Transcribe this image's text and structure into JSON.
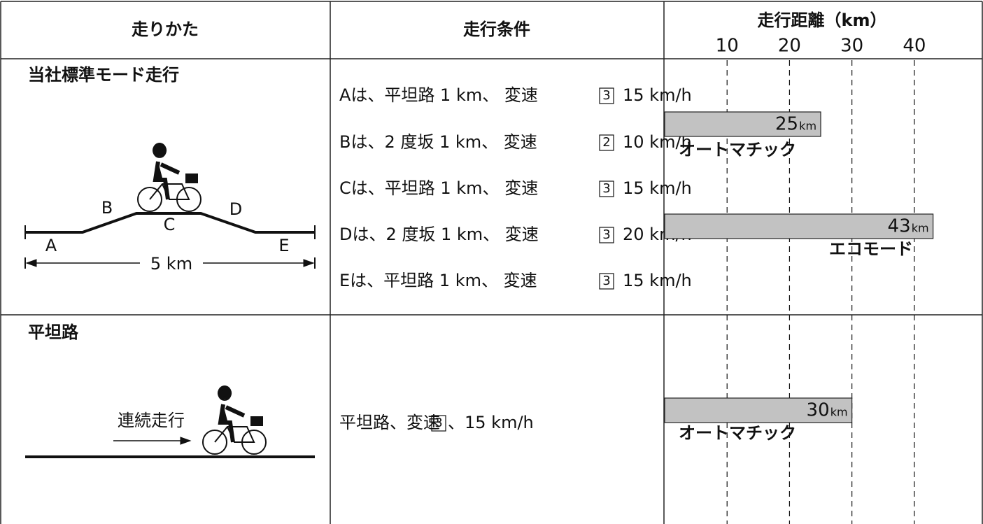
{
  "header": {
    "method": "走りかた",
    "conditions": "走行条件",
    "distance": "走行距離（km）"
  },
  "axis": {
    "xlim": [
      0,
      51
    ],
    "xticks": [
      10,
      20,
      30,
      40
    ]
  },
  "rows": [
    {
      "title": "当社標準モード走行",
      "diagram": {
        "points": [
          "A",
          "B",
          "C",
          "D",
          "E"
        ],
        "length": "5 km"
      },
      "conditions": [
        {
          "text": "Aは、平坦路 1 km、 変速",
          "gear": "3",
          "speed": "15 km/h"
        },
        {
          "text": "Bは、2 度坂 1 km、 変速",
          "gear": "2",
          "speed": "10 km/h"
        },
        {
          "text": "Cは、平坦路 1 km、 変速",
          "gear": "3",
          "speed": "15 km/h"
        },
        {
          "text": "Dは、2 度坂 1 km、 変速",
          "gear": "3",
          "speed": "20 km/h"
        },
        {
          "text": "Eは、平坦路 1 km、 変速",
          "gear": "3",
          "speed": "15 km/h"
        }
      ],
      "bars": [
        {
          "value": 25,
          "unit": "km",
          "label": "オートマチック"
        },
        {
          "value": 43,
          "unit": "km",
          "label": "エコモード"
        }
      ]
    },
    {
      "title": "平坦路",
      "diagram": {
        "caption": "連続走行"
      },
      "conditions": [
        {
          "text": "平坦路、変速",
          "gear": "3",
          "speed": "、15 km/h"
        }
      ],
      "bars": [
        {
          "value": 30,
          "unit": "km",
          "label": "オートマチック"
        }
      ]
    }
  ]
}
